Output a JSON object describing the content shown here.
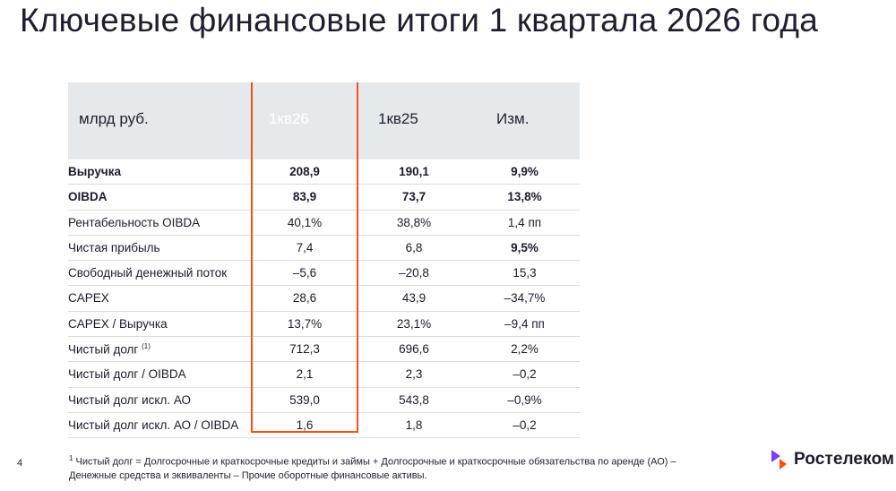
{
  "title": "Ключевые финансовые итоги 1 квартала 2026 года",
  "table": {
    "headers": [
      "млрд руб.",
      "1кв26",
      "1кв25",
      "Изм."
    ],
    "rows": [
      {
        "label": "Выручка",
        "q1_26": "208,9",
        "q1_25": "190,1",
        "change": "9,9%"
      },
      {
        "label": "OIBDA",
        "q1_26": "83,9",
        "q1_25": "73,7",
        "change": "13,8%"
      },
      {
        "label": "Рентабельность OIBDA",
        "q1_26": "40,1%",
        "q1_25": "38,8%",
        "change": "1,4 пп"
      },
      {
        "label": "Чистая прибыль",
        "q1_26": "7,4",
        "q1_25": "6,8",
        "change": "9,5%"
      },
      {
        "label": "Свободный денежный поток",
        "q1_26": "–5,6",
        "q1_25": "–20,8",
        "change": "15,3"
      },
      {
        "label": "CAPEX",
        "q1_26": "28,6",
        "q1_25": "43,9",
        "change": "–34,7%"
      },
      {
        "label": "CAPEX / Выручка",
        "q1_26": "13,7%",
        "q1_25": "23,1%",
        "change": "–9,4 пп"
      },
      {
        "label": "Чистый долг",
        "footnote_mark": "(1)",
        "q1_26": "712,3",
        "q1_25": "696,6",
        "change": "2,2%"
      },
      {
        "label": "Чистый долг / OIBDA",
        "q1_26": "2,1",
        "q1_25": "2,3",
        "change": "–0,2"
      },
      {
        "label": "Чистый долг искл. АО",
        "q1_26": "539,0",
        "q1_25": "543,8",
        "change": "–0,9%"
      },
      {
        "label": "Чистый долг искл. АО / OIBDA",
        "q1_26": "1,6",
        "q1_25": "1,8",
        "change": "–0,2"
      }
    ]
  },
  "footnote": {
    "mark": "1",
    "line1": "Чистый долг = Долгосрочные и краткосрочные кредиты и займы + Долгосрочные и краткосрочные обязательства по аренде (АО) –",
    "line2": "Денежные средства и эквиваленты – Прочие оборотные финансовые активы."
  },
  "page_number": "4",
  "logo": {
    "text": "Ростелеком",
    "color": "#7b3ff2"
  },
  "accent_color": "#ff4f12"
}
